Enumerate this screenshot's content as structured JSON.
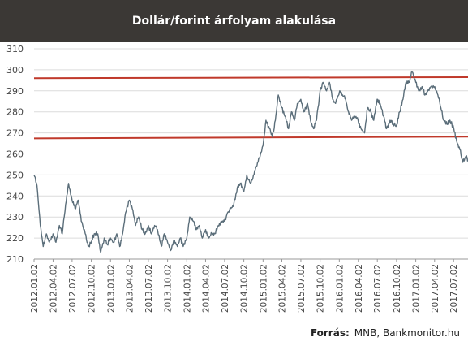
{
  "header": {
    "title": "Dollár/forint árfolyam alakulása"
  },
  "source": {
    "label": "Forrás:",
    "text": "MNB, Bankmonitor.hu"
  },
  "colors": {
    "banner": "#3b3835",
    "series": "#5b6e7a",
    "refline": "#c0392b",
    "grid": "#dcdcdc"
  },
  "chart_data": {
    "type": "line",
    "title": "Dollár/forint árfolyam alakulása",
    "xlabel": "",
    "ylabel": "",
    "ylim": [
      210,
      310
    ],
    "yticks": [
      210,
      220,
      230,
      240,
      250,
      260,
      270,
      280,
      290,
      300,
      310
    ],
    "grid": true,
    "x_tick_labels": [
      "2012.01.02",
      "2012.04.02",
      "2012.07.02",
      "2012.10.02",
      "2013.01.02",
      "2013.04.02",
      "2013.07.02",
      "2013.10.02",
      "2014.01.02",
      "2014.04.02",
      "2014.07.02",
      "2014.10.02",
      "2015.01.02",
      "2015.04.02",
      "2015.07.02",
      "2015.10.02",
      "2016.01.02",
      "2016.04.02",
      "2016.07.02",
      "2016.10.02",
      "2017.01.02",
      "2017.04.02",
      "2017.07.02"
    ],
    "series": [
      {
        "values": [
          {
            "x": "2012.01.02",
            "y": 250
          },
          {
            "x": "2012.01.16",
            "y": 245
          },
          {
            "x": "2012.02.01",
            "y": 226
          },
          {
            "x": "2012.02.15",
            "y": 216
          },
          {
            "x": "2012.03.01",
            "y": 222
          },
          {
            "x": "2012.03.15",
            "y": 218
          },
          {
            "x": "2012.04.02",
            "y": 222
          },
          {
            "x": "2012.04.16",
            "y": 218
          },
          {
            "x": "2012.05.02",
            "y": 226
          },
          {
            "x": "2012.05.16",
            "y": 222
          },
          {
            "x": "2012.06.01",
            "y": 236
          },
          {
            "x": "2012.06.15",
            "y": 246
          },
          {
            "x": "2012.07.02",
            "y": 238
          },
          {
            "x": "2012.07.16",
            "y": 234
          },
          {
            "x": "2012.08.01",
            "y": 238
          },
          {
            "x": "2012.08.15",
            "y": 228
          },
          {
            "x": "2012.09.03",
            "y": 222
          },
          {
            "x": "2012.09.17",
            "y": 216
          },
          {
            "x": "2012.10.02",
            "y": 218
          },
          {
            "x": "2012.10.16",
            "y": 222
          },
          {
            "x": "2012.11.02",
            "y": 222
          },
          {
            "x": "2012.11.16",
            "y": 213
          },
          {
            "x": "2012.12.03",
            "y": 220
          },
          {
            "x": "2012.12.17",
            "y": 217
          },
          {
            "x": "2013.01.02",
            "y": 220
          },
          {
            "x": "2013.01.16",
            "y": 218
          },
          {
            "x": "2013.02.01",
            "y": 222
          },
          {
            "x": "2013.02.15",
            "y": 216
          },
          {
            "x": "2013.03.01",
            "y": 222
          },
          {
            "x": "2013.03.15",
            "y": 232
          },
          {
            "x": "2013.04.02",
            "y": 238
          },
          {
            "x": "2013.04.16",
            "y": 234
          },
          {
            "x": "2013.05.02",
            "y": 226
          },
          {
            "x": "2013.05.16",
            "y": 230
          },
          {
            "x": "2013.06.03",
            "y": 224
          },
          {
            "x": "2013.06.17",
            "y": 222
          },
          {
            "x": "2013.07.02",
            "y": 226
          },
          {
            "x": "2013.07.16",
            "y": 222
          },
          {
            "x": "2013.08.01",
            "y": 226
          },
          {
            "x": "2013.08.15",
            "y": 224
          },
          {
            "x": "2013.09.02",
            "y": 216
          },
          {
            "x": "2013.09.16",
            "y": 222
          },
          {
            "x": "2013.10.02",
            "y": 218
          },
          {
            "x": "2013.10.16",
            "y": 214
          },
          {
            "x": "2013.11.04",
            "y": 219
          },
          {
            "x": "2013.11.18",
            "y": 216
          },
          {
            "x": "2013.12.02",
            "y": 220
          },
          {
            "x": "2013.12.16",
            "y": 216
          },
          {
            "x": "2014.01.02",
            "y": 220
          },
          {
            "x": "2014.01.16",
            "y": 230
          },
          {
            "x": "2014.02.03",
            "y": 228
          },
          {
            "x": "2014.02.17",
            "y": 224
          },
          {
            "x": "2014.03.03",
            "y": 226
          },
          {
            "x": "2014.03.17",
            "y": 220
          },
          {
            "x": "2014.04.02",
            "y": 224
          },
          {
            "x": "2014.04.16",
            "y": 220
          },
          {
            "x": "2014.05.02",
            "y": 222
          },
          {
            "x": "2014.05.16",
            "y": 222
          },
          {
            "x": "2014.06.02",
            "y": 226
          },
          {
            "x": "2014.06.16",
            "y": 228
          },
          {
            "x": "2014.07.02",
            "y": 228
          },
          {
            "x": "2014.07.16",
            "y": 232
          },
          {
            "x": "2014.08.01",
            "y": 234
          },
          {
            "x": "2014.08.15",
            "y": 236
          },
          {
            "x": "2014.09.01",
            "y": 244
          },
          {
            "x": "2014.09.15",
            "y": 246
          },
          {
            "x": "2014.10.02",
            "y": 242
          },
          {
            "x": "2014.10.16",
            "y": 250
          },
          {
            "x": "2014.11.03",
            "y": 246
          },
          {
            "x": "2014.11.17",
            "y": 250
          },
          {
            "x": "2014.12.01",
            "y": 254
          },
          {
            "x": "2014.12.15",
            "y": 258
          },
          {
            "x": "2015.01.02",
            "y": 264
          },
          {
            "x": "2015.01.16",
            "y": 276
          },
          {
            "x": "2015.02.02",
            "y": 272
          },
          {
            "x": "2015.02.16",
            "y": 268
          },
          {
            "x": "2015.03.02",
            "y": 276
          },
          {
            "x": "2015.03.16",
            "y": 288
          },
          {
            "x": "2015.04.02",
            "y": 282
          },
          {
            "x": "2015.04.16",
            "y": 278
          },
          {
            "x": "2015.05.04",
            "y": 272
          },
          {
            "x": "2015.05.18",
            "y": 280
          },
          {
            "x": "2015.06.01",
            "y": 276
          },
          {
            "x": "2015.06.15",
            "y": 284
          },
          {
            "x": "2015.07.02",
            "y": 286
          },
          {
            "x": "2015.07.16",
            "y": 280
          },
          {
            "x": "2015.08.03",
            "y": 284
          },
          {
            "x": "2015.08.17",
            "y": 276
          },
          {
            "x": "2015.09.01",
            "y": 272
          },
          {
            "x": "2015.09.15",
            "y": 276
          },
          {
            "x": "2015.10.02",
            "y": 290
          },
          {
            "x": "2015.10.16",
            "y": 294
          },
          {
            "x": "2015.11.02",
            "y": 290
          },
          {
            "x": "2015.11.16",
            "y": 294
          },
          {
            "x": "2015.12.01",
            "y": 286
          },
          {
            "x": "2015.12.15",
            "y": 284
          },
          {
            "x": "2016.01.04",
            "y": 290
          },
          {
            "x": "2016.01.18",
            "y": 288
          },
          {
            "x": "2016.02.01",
            "y": 286
          },
          {
            "x": "2016.02.15",
            "y": 280
          },
          {
            "x": "2016.03.01",
            "y": 276
          },
          {
            "x": "2016.03.15",
            "y": 278
          },
          {
            "x": "2016.04.01",
            "y": 276
          },
          {
            "x": "2016.04.15",
            "y": 272
          },
          {
            "x": "2016.05.02",
            "y": 270
          },
          {
            "x": "2016.05.16",
            "y": 282
          },
          {
            "x": "2016.06.01",
            "y": 280
          },
          {
            "x": "2016.06.15",
            "y": 276
          },
          {
            "x": "2016.07.01",
            "y": 286
          },
          {
            "x": "2016.07.15",
            "y": 284
          },
          {
            "x": "2016.08.01",
            "y": 278
          },
          {
            "x": "2016.08.15",
            "y": 272
          },
          {
            "x": "2016.09.01",
            "y": 276
          },
          {
            "x": "2016.09.15",
            "y": 274
          },
          {
            "x": "2016.10.03",
            "y": 274
          },
          {
            "x": "2016.10.17",
            "y": 280
          },
          {
            "x": "2016.11.02",
            "y": 286
          },
          {
            "x": "2016.11.16",
            "y": 294
          },
          {
            "x": "2016.12.01",
            "y": 294
          },
          {
            "x": "2016.12.15",
            "y": 299
          },
          {
            "x": "2017.01.02",
            "y": 294
          },
          {
            "x": "2017.01.16",
            "y": 290
          },
          {
            "x": "2017.02.01",
            "y": 292
          },
          {
            "x": "2017.02.15",
            "y": 288
          },
          {
            "x": "2017.03.01",
            "y": 290
          },
          {
            "x": "2017.03.15",
            "y": 292
          },
          {
            "x": "2017.04.03",
            "y": 292
          },
          {
            "x": "2017.04.18",
            "y": 288
          },
          {
            "x": "2017.05.02",
            "y": 282
          },
          {
            "x": "2017.05.16",
            "y": 276
          },
          {
            "x": "2017.06.01",
            "y": 274
          },
          {
            "x": "2017.06.15",
            "y": 276
          },
          {
            "x": "2017.07.03",
            "y": 272
          },
          {
            "x": "2017.07.17",
            "y": 266
          },
          {
            "x": "2017.08.01",
            "y": 262
          },
          {
            "x": "2017.08.15",
            "y": 256
          },
          {
            "x": "2017.09.01",
            "y": 259
          },
          {
            "x": "2017.09.08",
            "y": 257
          }
        ]
      }
    ],
    "reference_lines": [
      {
        "y1": 296.0,
        "y2": 296.5
      },
      {
        "y1": 267.4,
        "y2": 268.2
      }
    ]
  }
}
